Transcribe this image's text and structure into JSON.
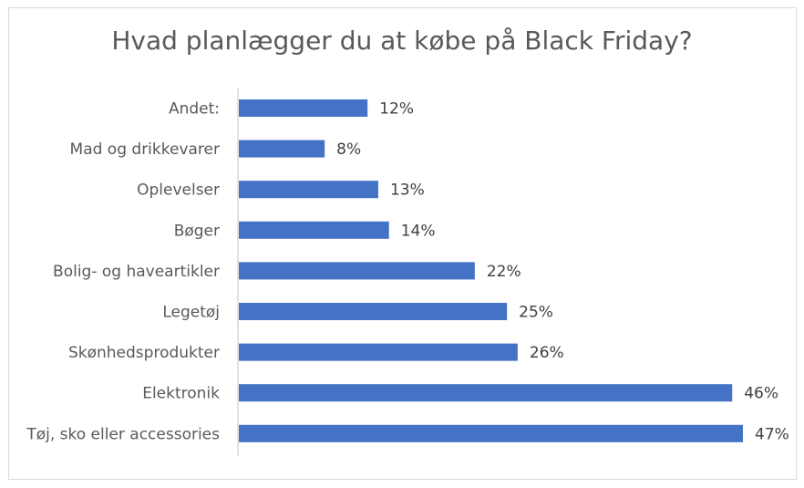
{
  "chart_data": {
    "type": "bar",
    "orientation": "horizontal",
    "title": "Hvad planlægger du at købe på Black Friday?",
    "categories": [
      "Andet:",
      "Mad og drikkevarer",
      "Oplevelser",
      "Bøger",
      "Bolig- og haveartikler",
      "Legetøj",
      "Skønhedsprodukter",
      "Elektronik",
      "Tøj, sko eller accessories"
    ],
    "values": [
      12,
      8,
      13,
      14,
      22,
      25,
      26,
      46,
      47
    ],
    "value_labels": [
      "12%",
      "8%",
      "13%",
      "14%",
      "22%",
      "25%",
      "26%",
      "46%",
      "47%"
    ],
    "xlim": [
      0,
      47
    ],
    "grid": false,
    "legend": "none",
    "bar_color": "#4472c4"
  }
}
